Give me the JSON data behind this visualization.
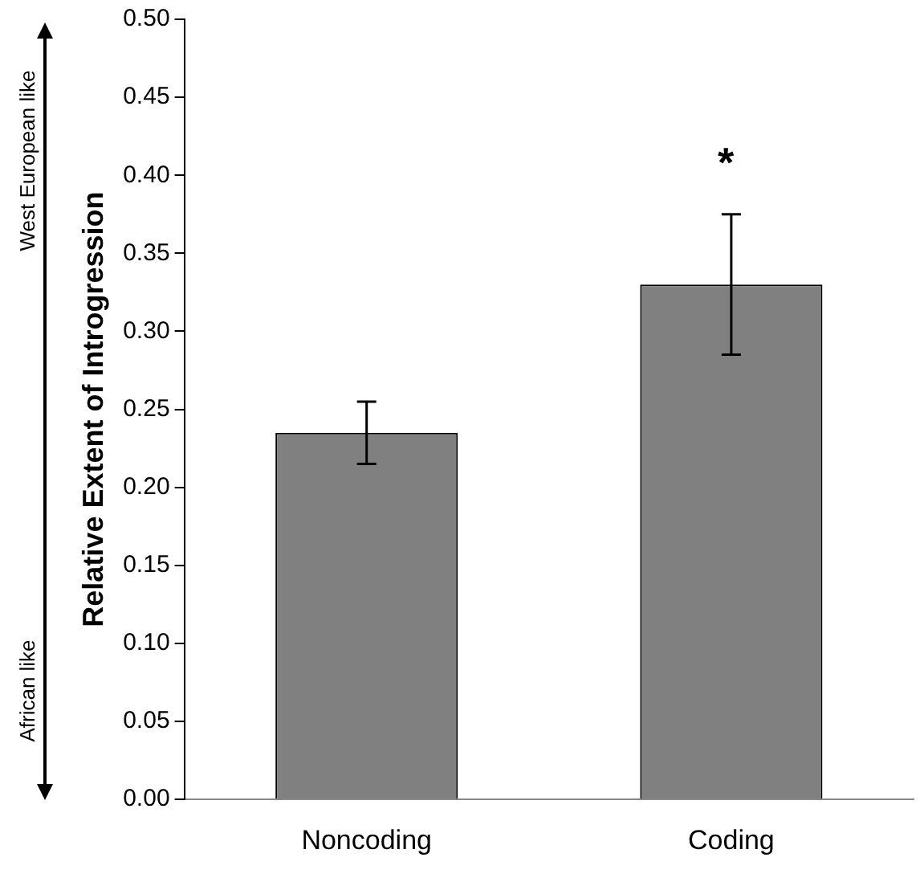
{
  "chart_data": {
    "type": "bar",
    "ylabel": "Relative Extent of Introgression",
    "categories": [
      "Noncoding",
      "Coding"
    ],
    "values": [
      0.235,
      0.33
    ],
    "color": "#808080",
    "errors": [
      0.02,
      0.045
    ],
    "ylim": [
      0,
      0.5
    ],
    "yticks": [
      {
        "value": 0,
        "label": "0.00"
      },
      {
        "value": 0.05,
        "label": "0.05"
      },
      {
        "value": 0.1,
        "label": "0.10"
      },
      {
        "value": 0.15,
        "label": "0.15"
      },
      {
        "value": 0.2,
        "label": "0.20"
      },
      {
        "value": 0.25,
        "label": "0.25"
      },
      {
        "value": 0.3,
        "label": "0.30"
      },
      {
        "value": 0.35,
        "label": "0.35"
      },
      {
        "value": 0.4,
        "label": "0.40"
      },
      {
        "value": 0.45,
        "label": "0.45"
      },
      {
        "value": 0.5,
        "label": "0.50"
      }
    ],
    "grid": false,
    "legend": false,
    "annotations": [
      "*",
      "West European like",
      "African like"
    ]
  }
}
